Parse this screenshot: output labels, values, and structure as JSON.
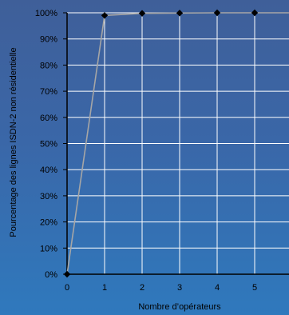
{
  "chart_data": {
    "type": "line",
    "title": "",
    "xlabel": "Nombre d’opérateurs",
    "ylabel": "Pourcentage des lignes ISDN-2 non résidentielle",
    "x_ticks": [
      "0",
      "1",
      "2",
      "3",
      "4",
      "5"
    ],
    "y_ticks": [
      "0%",
      "10%",
      "20%",
      "30%",
      "40%",
      "50%",
      "60%",
      "70%",
      "80%",
      "90%",
      "100%"
    ],
    "xlim": [
      0,
      6
    ],
    "ylim": [
      0,
      100
    ],
    "grid": true,
    "series": [
      {
        "x": [
          0,
          1,
          2,
          3,
          4,
          5,
          6
        ],
        "y": [
          0,
          99,
          99.8,
          99.9,
          100,
          100,
          100
        ]
      }
    ]
  },
  "colors": {
    "gridline": "#ffffff",
    "series_line": "#a6a6a6",
    "marker": "#000000",
    "axis": "#000000"
  }
}
